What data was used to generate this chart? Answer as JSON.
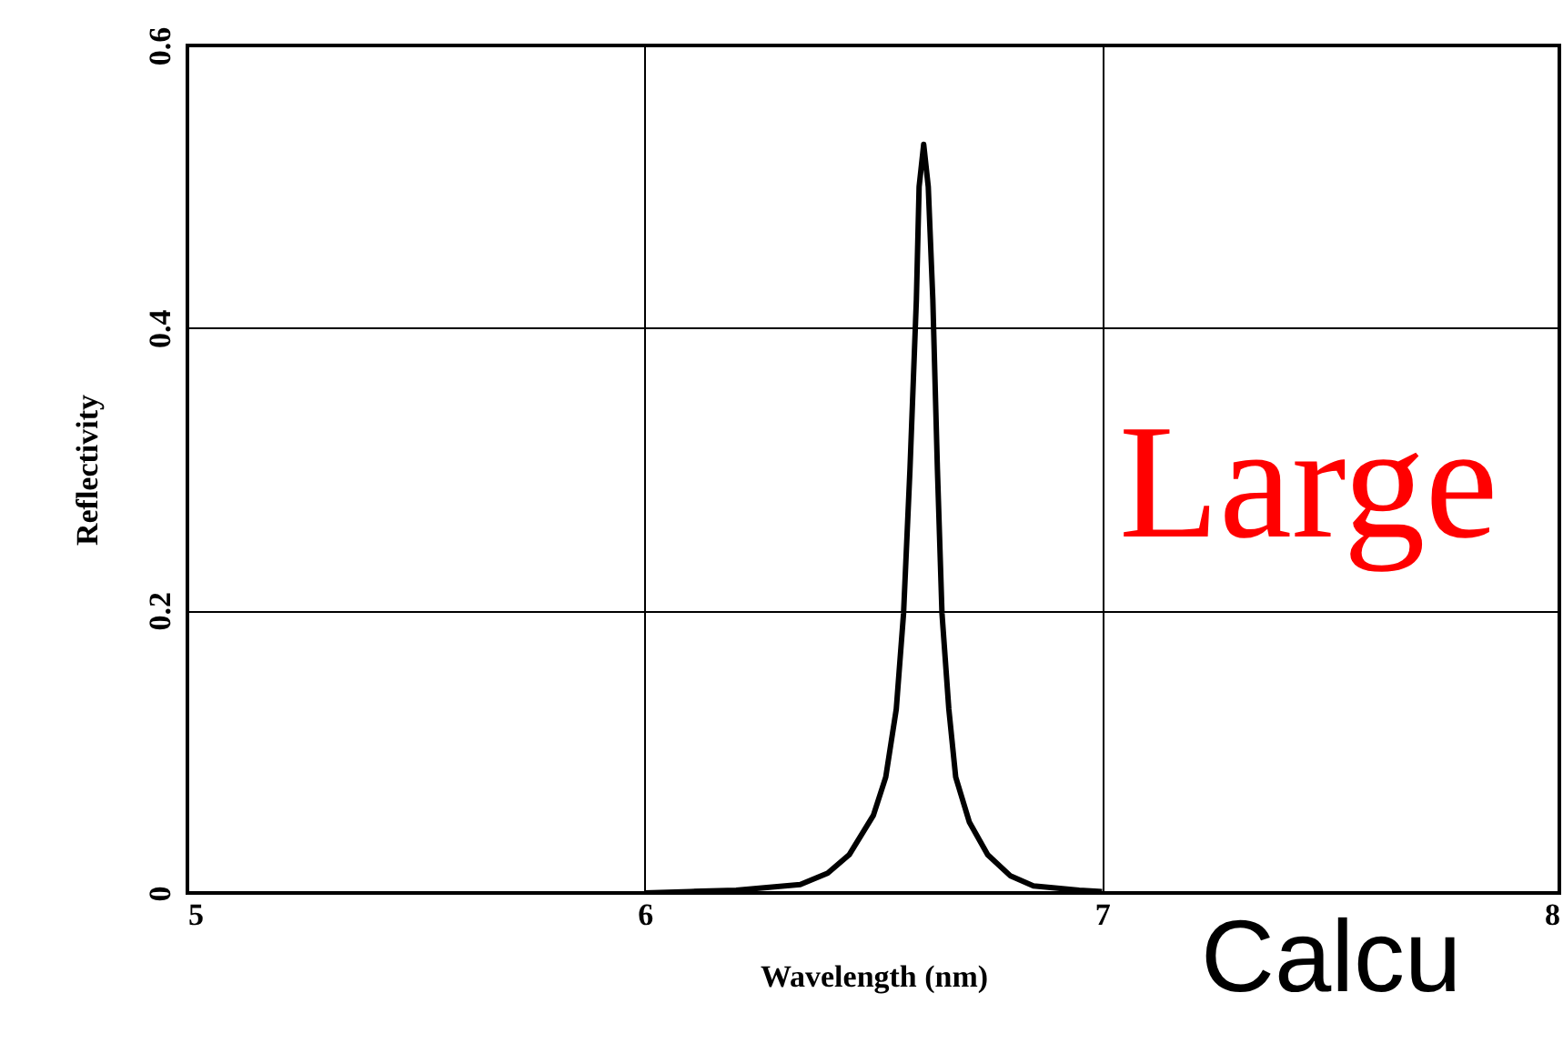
{
  "chart_data": {
    "type": "line",
    "xlabel": "Wavelength (nm)",
    "ylabel": "Reflectivity",
    "x": [
      6.0,
      6.1,
      6.2,
      6.34,
      6.4,
      6.447,
      6.5,
      6.527,
      6.55,
      6.566,
      6.58,
      6.594,
      6.6,
      6.61,
      6.62,
      6.63,
      6.64,
      6.65,
      6.665,
      6.68,
      6.71,
      6.75,
      6.8,
      6.85,
      6.95,
      7.0
    ],
    "series": [
      {
        "color": "#000000",
        "values": [
          0,
          0.001,
          0.002,
          0.006,
          0.014,
          0.027,
          0.055,
          0.082,
          0.13,
          0.198,
          0.3,
          0.42,
          0.5,
          0.53,
          0.5,
          0.42,
          0.3,
          0.198,
          0.13,
          0.082,
          0.05,
          0.027,
          0.012,
          0.005,
          0.002,
          0.001
        ]
      }
    ],
    "xlim": [
      5,
      8
    ],
    "xticks": [
      5,
      6,
      7,
      8
    ],
    "ylim": [
      0,
      0.6
    ],
    "yticks": [
      0,
      0.2,
      0.4,
      0.6
    ],
    "grid": true,
    "marker": "none",
    "line_style": "solid",
    "annotations": [
      "Large",
      "Calcu"
    ]
  }
}
